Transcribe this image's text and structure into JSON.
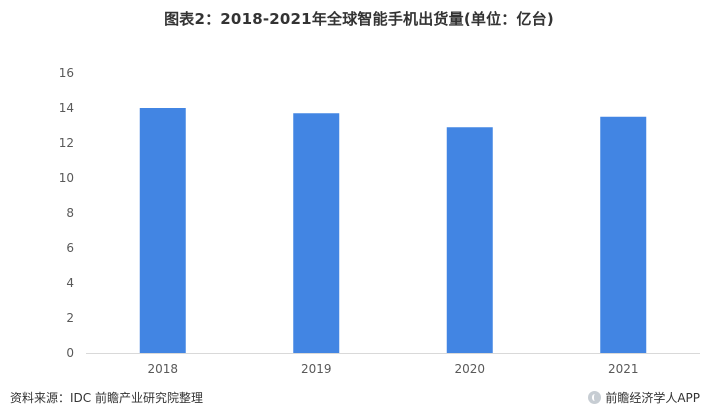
{
  "title": "图表2：2018-2021年全球智能手机出货量(单位：亿台)",
  "footer": {
    "source": "资料来源：IDC 前瞻产业研究院整理",
    "brand": "前瞻经济学人APP",
    "brand_icon": "qianzhan-logo-icon"
  },
  "colors": {
    "bar": "#4285e3",
    "axis": "#d9d9d9",
    "text": "#595959"
  },
  "chart_data": {
    "type": "bar",
    "title": "图表2：2018-2021年全球智能手机出货量(单位：亿台)",
    "categories": [
      "2018",
      "2019",
      "2020",
      "2021"
    ],
    "values": [
      14.0,
      13.7,
      12.9,
      13.5
    ],
    "ylim": [
      0,
      16
    ],
    "yticks": [
      0,
      2,
      4,
      6,
      8,
      10,
      12,
      14,
      16
    ],
    "xlabel": "",
    "ylabel": "",
    "grid": false,
    "legend": "none"
  }
}
